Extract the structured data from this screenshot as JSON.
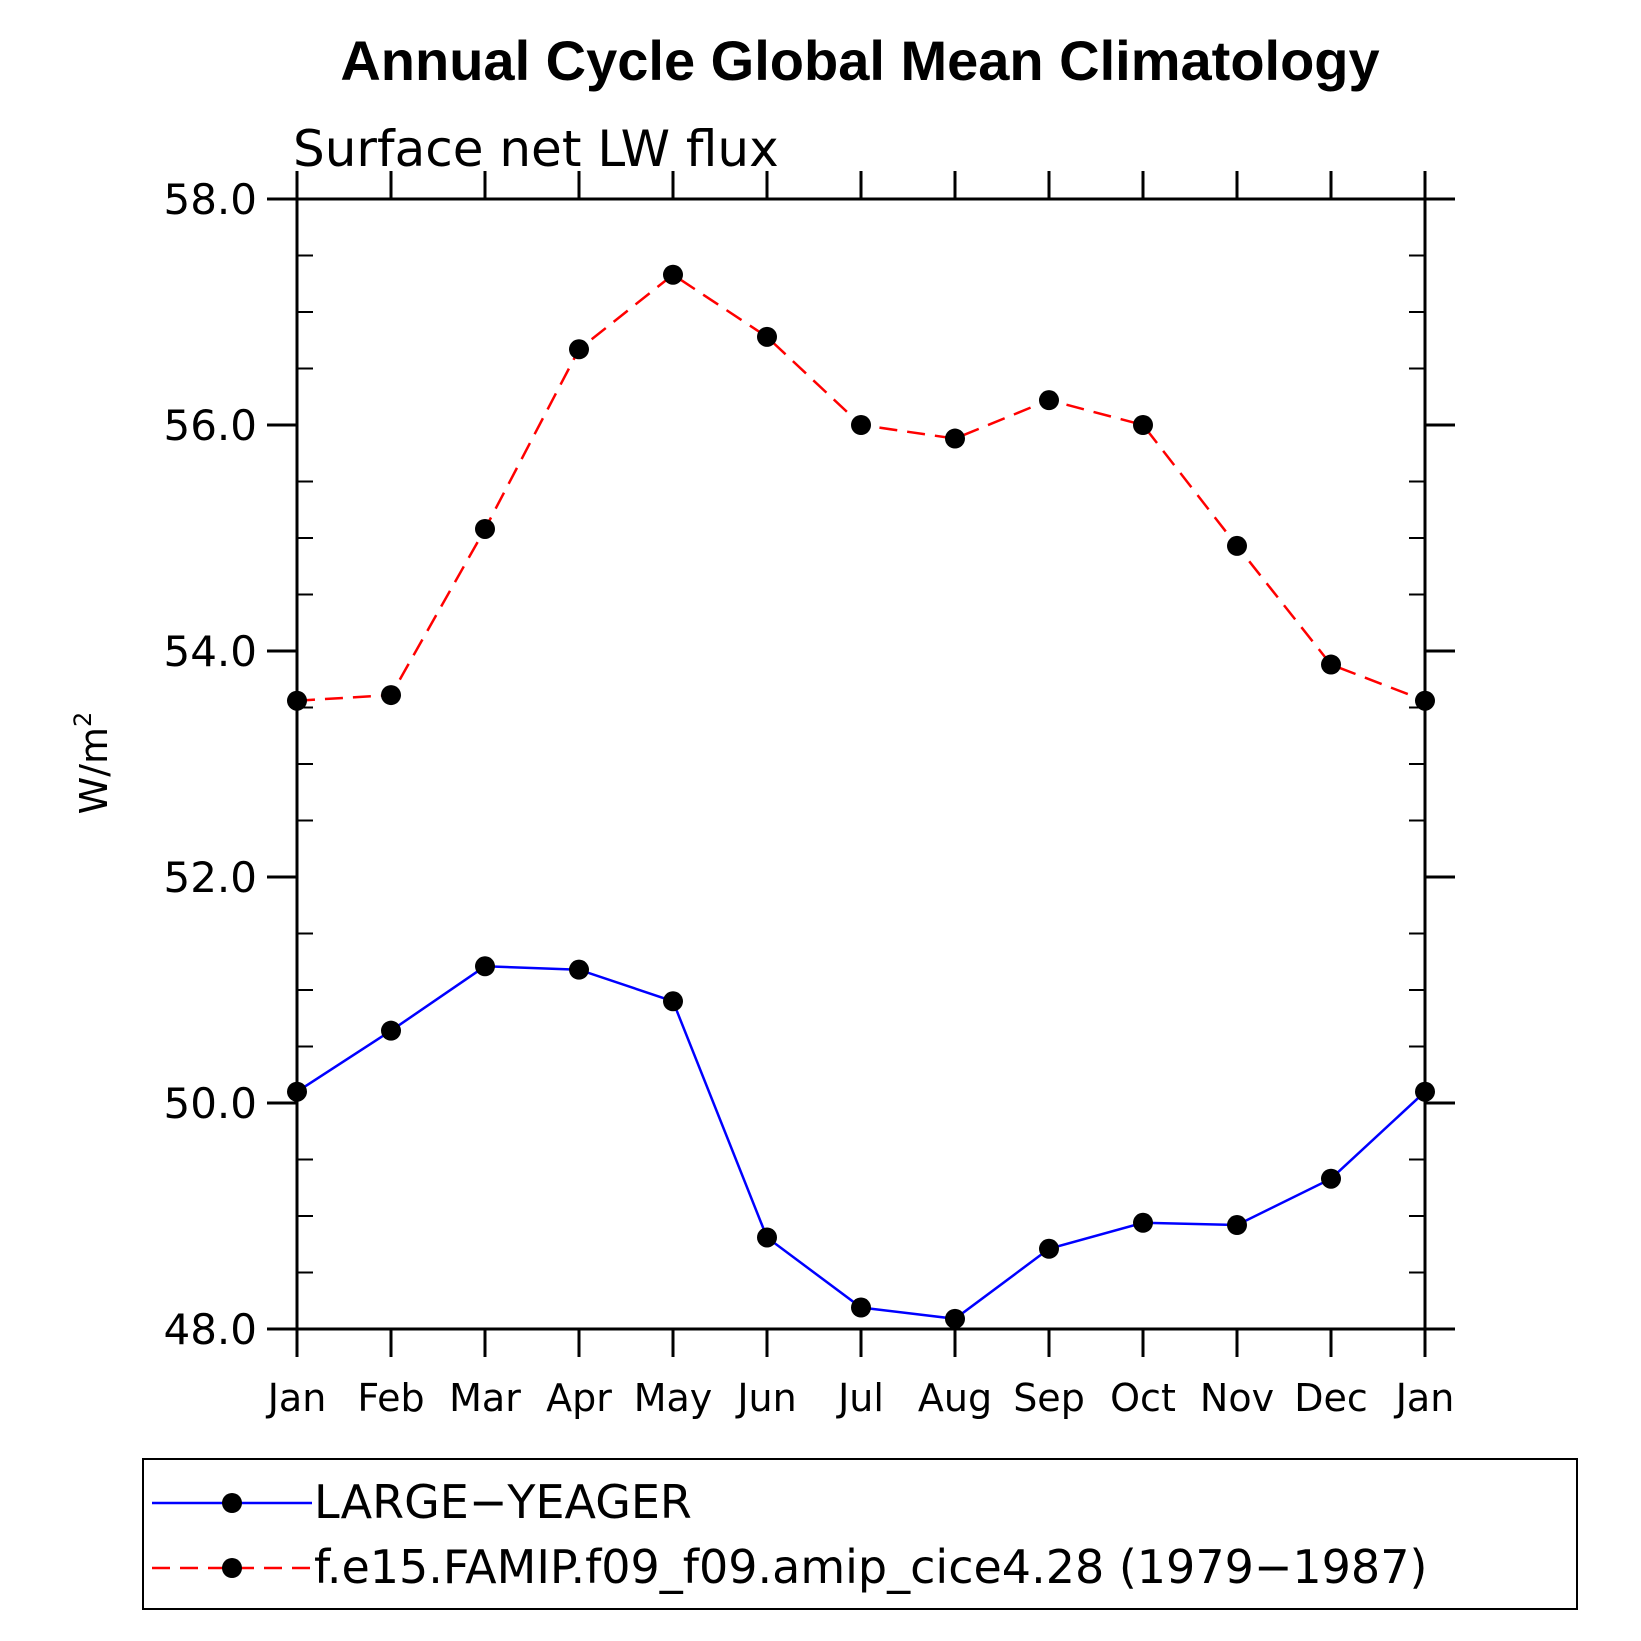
{
  "chart_data": {
    "type": "line",
    "title": "Annual Cycle Global Mean Climatology",
    "subtitle": "Surface net LW flux",
    "ylabel_base": "W/m",
    "ylabel_superscript": "2",
    "xlabel": "",
    "categories": [
      "Jan",
      "Feb",
      "Mar",
      "Apr",
      "May",
      "Jun",
      "Jul",
      "Aug",
      "Sep",
      "Oct",
      "Nov",
      "Dec",
      "Jan"
    ],
    "ylim": [
      48.0,
      58.0
    ],
    "yticks_major": [
      "48.0",
      "50.0",
      "52.0",
      "54.0",
      "56.0",
      "58.0"
    ],
    "y_minor_step": 0.5,
    "grid": false,
    "legend_position": "bottom",
    "series": [
      {
        "name": "LARGE−YEAGER",
        "color": "#0000ff",
        "line_style": "solid",
        "marker": "filled-circle",
        "values": [
          50.1,
          50.64,
          51.21,
          51.18,
          50.9,
          48.81,
          48.19,
          48.09,
          48.71,
          48.94,
          48.92,
          49.33,
          50.1
        ]
      },
      {
        "name": "f.e15.FAMIP.f09_f09.amip_cice4.28 (1979−1987)",
        "color": "#ff0000",
        "line_style": "dashed",
        "marker": "filled-circle",
        "values": [
          53.56,
          53.61,
          55.08,
          56.67,
          57.33,
          56.78,
          56.0,
          55.88,
          56.22,
          56.0,
          54.93,
          53.88,
          53.56
        ]
      }
    ]
  }
}
